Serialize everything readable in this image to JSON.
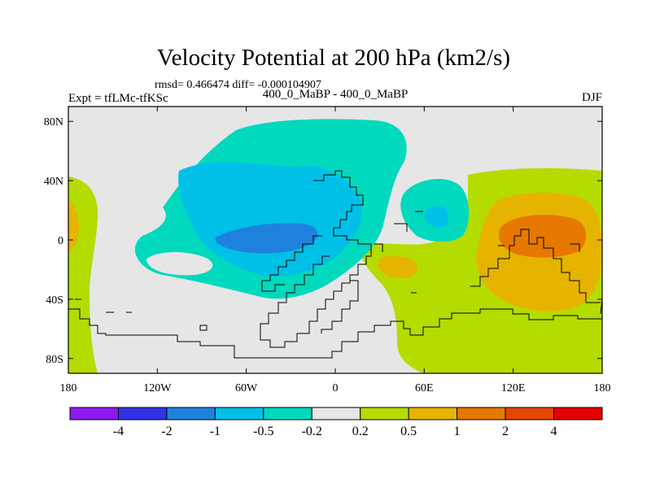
{
  "chart_data": {
    "type": "heatmap",
    "title": "Velocity Potential at 200 hPa (km2/s)",
    "stats": "rmsd= 0.466474  diff= -0.000104907",
    "left_label": "Expt = tfLMc-tfKSc",
    "center_label": "400_0_MaBP - 400_0_MaBP",
    "right_label": "DJF",
    "x_range": [
      -180,
      180
    ],
    "y_range": [
      -90,
      90
    ],
    "x_ticks": [
      {
        "value": -180,
        "label": "180"
      },
      {
        "value": -120,
        "label": "120W"
      },
      {
        "value": -60,
        "label": "60W"
      },
      {
        "value": 0,
        "label": "0"
      },
      {
        "value": 60,
        "label": "60E"
      },
      {
        "value": 120,
        "label": "120E"
      },
      {
        "value": 180,
        "label": "180"
      }
    ],
    "y_ticks": [
      {
        "value": 80,
        "label": "80N"
      },
      {
        "value": 40,
        "label": "40N"
      },
      {
        "value": 0,
        "label": "0"
      },
      {
        "value": -40,
        "label": "40S"
      },
      {
        "value": -80,
        "label": "80S"
      }
    ],
    "colorbar": {
      "colors": [
        "#8c1aef",
        "#3232e6",
        "#1e82dc",
        "#00c0e8",
        "#00d9be",
        "#e6e6e6",
        "#b4dc00",
        "#e6b400",
        "#e67800",
        "#e64600",
        "#e60000"
      ],
      "labels": [
        "-4",
        "-2",
        "-1",
        "-0.5",
        "-0.2",
        "0.2",
        "0.5",
        "1",
        "2",
        "4"
      ]
    }
  }
}
